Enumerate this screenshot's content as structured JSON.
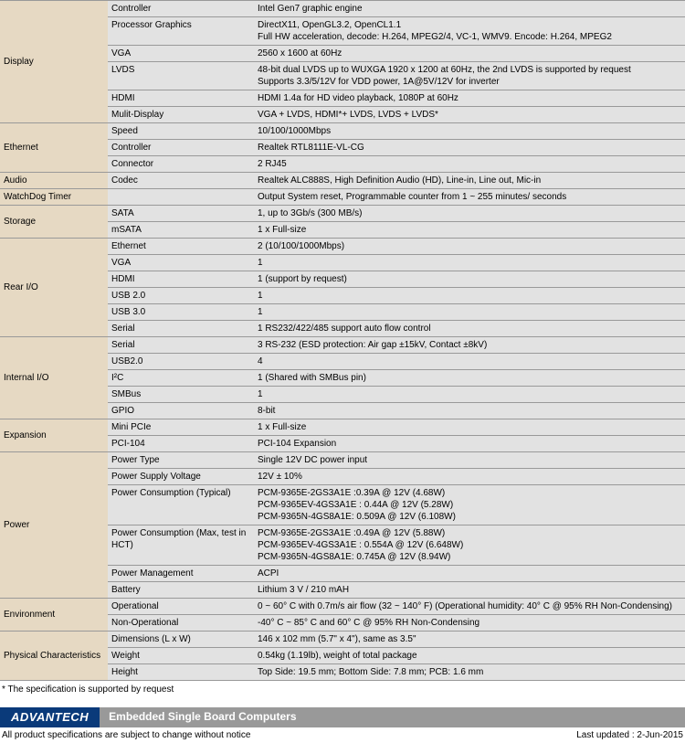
{
  "colors": {
    "cat_bg": "#e6d9c3",
    "row_bg": "#e2e2e2",
    "border": "#999999",
    "logo_bg": "#0a3a7a",
    "bar_bg": "#999999"
  },
  "sections": [
    {
      "cat": "Display",
      "rows": [
        {
          "param": "Controller",
          "val": "Intel Gen7 graphic engine"
        },
        {
          "param": "Processor Graphics",
          "val": "DirectX11, OpenGL3.2, OpenCL1.1\nFull HW acceleration, decode: H.264, MPEG2/4, VC-1, WMV9. Encode: H.264, MPEG2"
        },
        {
          "param": "VGA",
          "val": "2560 x 1600 at 60Hz"
        },
        {
          "param": "LVDS",
          "val": "48-bit dual LVDS up to WUXGA 1920 x 1200 at 60Hz, the 2nd LVDS is supported by request\nSupports 3.3/5/12V for VDD power, 1A@5V/12V for inverter"
        },
        {
          "param": "HDMI",
          "val": "HDMI 1.4a for HD video playback, 1080P at 60Hz"
        },
        {
          "param": "Mulit-Display",
          "val": "VGA + LVDS, HDMI*+ LVDS, LVDS + LVDS*"
        }
      ]
    },
    {
      "cat": "Ethernet",
      "rows": [
        {
          "param": "Speed",
          "val": "10/100/1000Mbps"
        },
        {
          "param": "Controller",
          "val": "Realtek RTL8111E-VL-CG"
        },
        {
          "param": "Connector",
          "val": "2 RJ45"
        }
      ]
    },
    {
      "cat": "Audio",
      "rows": [
        {
          "param": "Codec",
          "val": "Realtek ALC888S, High Definition Audio (HD), Line-in, Line out, Mic-in"
        }
      ]
    },
    {
      "cat": "WatchDog Timer",
      "rows": [
        {
          "param": "",
          "val": "Output System reset, Programmable counter from 1 ~ 255 minutes/ seconds"
        }
      ]
    },
    {
      "cat": "Storage",
      "rows": [
        {
          "param": "SATA",
          "val": "1, up to 3Gb/s (300 MB/s)"
        },
        {
          "param": "mSATA",
          "val": "1 x Full-size"
        }
      ]
    },
    {
      "cat": "Rear I/O",
      "rows": [
        {
          "param": "Ethernet",
          "val": "2 (10/100/1000Mbps)"
        },
        {
          "param": "VGA",
          "val": "1"
        },
        {
          "param": "HDMI",
          "val": "1 (support by request)"
        },
        {
          "param": "USB 2.0",
          "val": "1"
        },
        {
          "param": "USB 3.0",
          "val": "1"
        },
        {
          "param": "Serial",
          "val": "1 RS232/422/485 support auto flow control"
        }
      ]
    },
    {
      "cat": "Internal I/O",
      "rows": [
        {
          "param": "Serial",
          "val": "3 RS-232 (ESD protection: Air gap ±15kV, Contact ±8kV)"
        },
        {
          "param": "USB2.0",
          "val": "4"
        },
        {
          "param": "I²C",
          "val": "1 (Shared with SMBus pin)"
        },
        {
          "param": "SMBus",
          "val": "1"
        },
        {
          "param": "GPIO",
          "val": "8-bit"
        }
      ]
    },
    {
      "cat": "Expansion",
      "rows": [
        {
          "param": "Mini PCIe",
          "val": "1 x Full-size"
        },
        {
          "param": "PCI-104",
          "val": "PCI-104 Expansion"
        }
      ]
    },
    {
      "cat": "Power",
      "rows": [
        {
          "param": "Power Type",
          "val": "Single 12V DC power input"
        },
        {
          "param": "Power Supply Voltage",
          "val": "12V ± 10%"
        },
        {
          "param": "Power Consumption (Typical)",
          "val": "PCM-9365E-2GS3A1E :0.39A @ 12V (4.68W)\nPCM-9365EV-4GS3A1E : 0.44A @ 12V (5.28W)\nPCM-9365N-4GS8A1E: 0.509A @ 12V (6.108W)"
        },
        {
          "param": "Power Consumption (Max, test in HCT)",
          "val": "PCM-9365E-2GS3A1E :0.49A @ 12V (5.88W)\nPCM-9365EV-4GS3A1E : 0.554A @ 12V (6.648W)\nPCM-9365N-4GS8A1E: 0.745A @ 12V (8.94W)"
        },
        {
          "param": "Power Management",
          "val": "ACPI"
        },
        {
          "param": "Battery",
          "val": "Lithium 3 V / 210 mAH"
        }
      ]
    },
    {
      "cat": "Environment",
      "rows": [
        {
          "param": "Operational",
          "val": "0 ~ 60° C with 0.7m/s air flow (32 ~ 140° F) (Operational humidity: 40° C @ 95% RH Non-Condensing)"
        },
        {
          "param": "Non-Operational",
          "val": "-40° C ~ 85° C and 60° C @ 95% RH Non-Condensing"
        }
      ]
    },
    {
      "cat": "Physical Characteristics",
      "rows": [
        {
          "param": "Dimensions (L x W)",
          "val": "146 x 102 mm (5.7\" x 4\"), same as 3.5\""
        },
        {
          "param": "Weight",
          "val": "0.54kg (1.19lb), weight of total package"
        },
        {
          "param": "Height",
          "val": "Top Side: 19.5 mm; Bottom Side: 7.8 mm; PCB: 1.6 mm"
        }
      ]
    }
  ],
  "footnote": "* The specification is supported by request",
  "logo": "ADVANTECH",
  "footer_title": "Embedded Single Board Computers",
  "disclaimer": "All product specifications are subject to change without notice",
  "last_updated": "Last updated : 2-Jun-2015"
}
